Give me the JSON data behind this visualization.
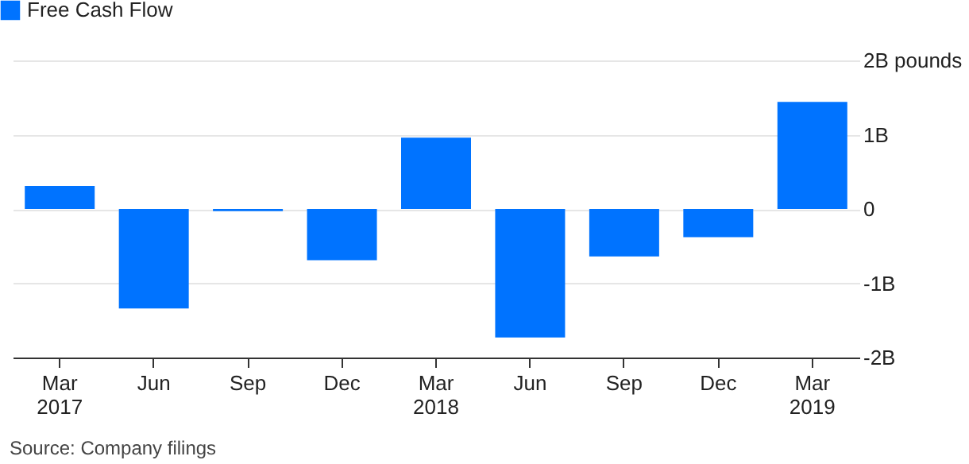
{
  "chart_data": {
    "type": "bar",
    "categories": [
      "Mar 2017",
      "Jun",
      "Sep",
      "Dec",
      "Mar 2018",
      "Jun",
      "Sep",
      "Dec",
      "Mar 2019"
    ],
    "series": [
      {
        "name": "Free Cash Flow",
        "color": "#0073ff",
        "values": [
          0.31,
          -1.34,
          -0.03,
          -0.69,
          0.96,
          -1.73,
          -0.64,
          -0.38,
          1.44
        ]
      }
    ],
    "ylim": [
      -2,
      2
    ],
    "yticks": [
      {
        "value": -2,
        "label": "-2B"
      },
      {
        "value": -1,
        "label": "-1B"
      },
      0,
      {
        "value": 1,
        "label": "1B"
      },
      {
        "value": 2,
        "label": "2B pounds"
      }
    ],
    "grid": "y",
    "legend": "top left",
    "annotations": [
      "Source: Company filings"
    ]
  }
}
